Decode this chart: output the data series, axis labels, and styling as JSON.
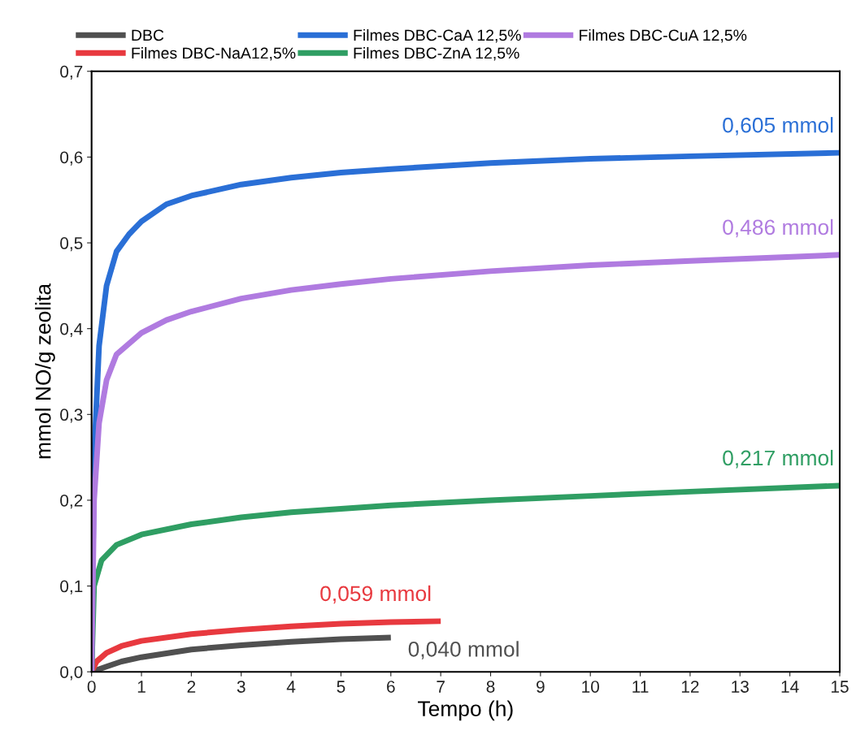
{
  "chart_data": {
    "type": "line",
    "xlabel": "Tempo (h)",
    "ylabel": "mmol NO/g zeolita",
    "series": [
      {
        "name": "DBC",
        "color": "#505050",
        "x": [
          0,
          0.3,
          0.6,
          1,
          2,
          3,
          4,
          5,
          6
        ],
        "values": [
          0,
          0.006,
          0.012,
          0.017,
          0.026,
          0.031,
          0.035,
          0.038,
          0.04
        ]
      },
      {
        "name": "Filmes DBC-NaA12,5%",
        "color": "#e8393f",
        "x": [
          0,
          0.1,
          0.3,
          0.6,
          1,
          2,
          3,
          4,
          5,
          6,
          7
        ],
        "values": [
          0,
          0.012,
          0.022,
          0.03,
          0.036,
          0.044,
          0.049,
          0.053,
          0.056,
          0.058,
          0.059
        ]
      },
      {
        "name": "Filmes DBC-CaA 12,5%",
        "color": "#2a6fd6",
        "x": [
          0,
          0.05,
          0.15,
          0.3,
          0.5,
          0.75,
          1,
          1.5,
          2,
          3,
          4,
          5,
          6,
          8,
          10,
          12,
          15
        ],
        "values": [
          0,
          0.25,
          0.38,
          0.45,
          0.49,
          0.51,
          0.525,
          0.545,
          0.555,
          0.568,
          0.576,
          0.582,
          0.586,
          0.593,
          0.598,
          0.601,
          0.605
        ]
      },
      {
        "name": "Filmes DBC-ZnA 12,5%",
        "color": "#2f9e63",
        "x": [
          0,
          0.05,
          0.2,
          0.5,
          1,
          2,
          3,
          4,
          5,
          6,
          8,
          10,
          12,
          15
        ],
        "values": [
          0,
          0.1,
          0.13,
          0.148,
          0.16,
          0.172,
          0.18,
          0.186,
          0.19,
          0.194,
          0.2,
          0.205,
          0.21,
          0.217
        ]
      },
      {
        "name": "Filmes DBC-CuA 12,5%",
        "color": "#b07be0",
        "x": [
          0,
          0.05,
          0.15,
          0.3,
          0.5,
          1,
          1.5,
          2,
          3,
          4,
          5,
          6,
          8,
          10,
          12,
          15
        ],
        "values": [
          0,
          0.2,
          0.29,
          0.34,
          0.37,
          0.395,
          0.41,
          0.42,
          0.435,
          0.445,
          0.452,
          0.458,
          0.467,
          0.474,
          0.479,
          0.486
        ]
      }
    ],
    "annotations": [
      {
        "text": "0,605 mmol",
        "x": 15,
        "y": 0.605
      },
      {
        "text": "0,486 mmol",
        "x": 15,
        "y": 0.486
      },
      {
        "text": "0,217 mmol",
        "x": 15,
        "y": 0.217
      },
      {
        "text": "0,059 mmol",
        "x": 7,
        "y": 0.059
      },
      {
        "text": "0,040 mmol",
        "x": 6,
        "y": 0.04
      }
    ],
    "xlim": [
      0,
      15
    ],
    "xticks": [
      0,
      1,
      2,
      3,
      4,
      5,
      6,
      7,
      8,
      9,
      10,
      11,
      12,
      13,
      14,
      15
    ],
    "ylim": [
      0,
      0.7
    ],
    "yticks": [
      {
        "value": 0,
        "label": "0,0"
      },
      {
        "value": 0.1,
        "label": "0,1"
      },
      {
        "value": 0.2,
        "label": "0,2"
      },
      {
        "value": 0.3,
        "label": "0,3"
      },
      {
        "value": 0.4,
        "label": "0,4"
      },
      {
        "value": 0.5,
        "label": "0,5"
      },
      {
        "value": 0.6,
        "label": "0,6"
      },
      {
        "value": 0.7,
        "label": "0,7"
      }
    ],
    "grid": false,
    "legend": "top",
    "line_style": "solid",
    "marker": "none"
  }
}
